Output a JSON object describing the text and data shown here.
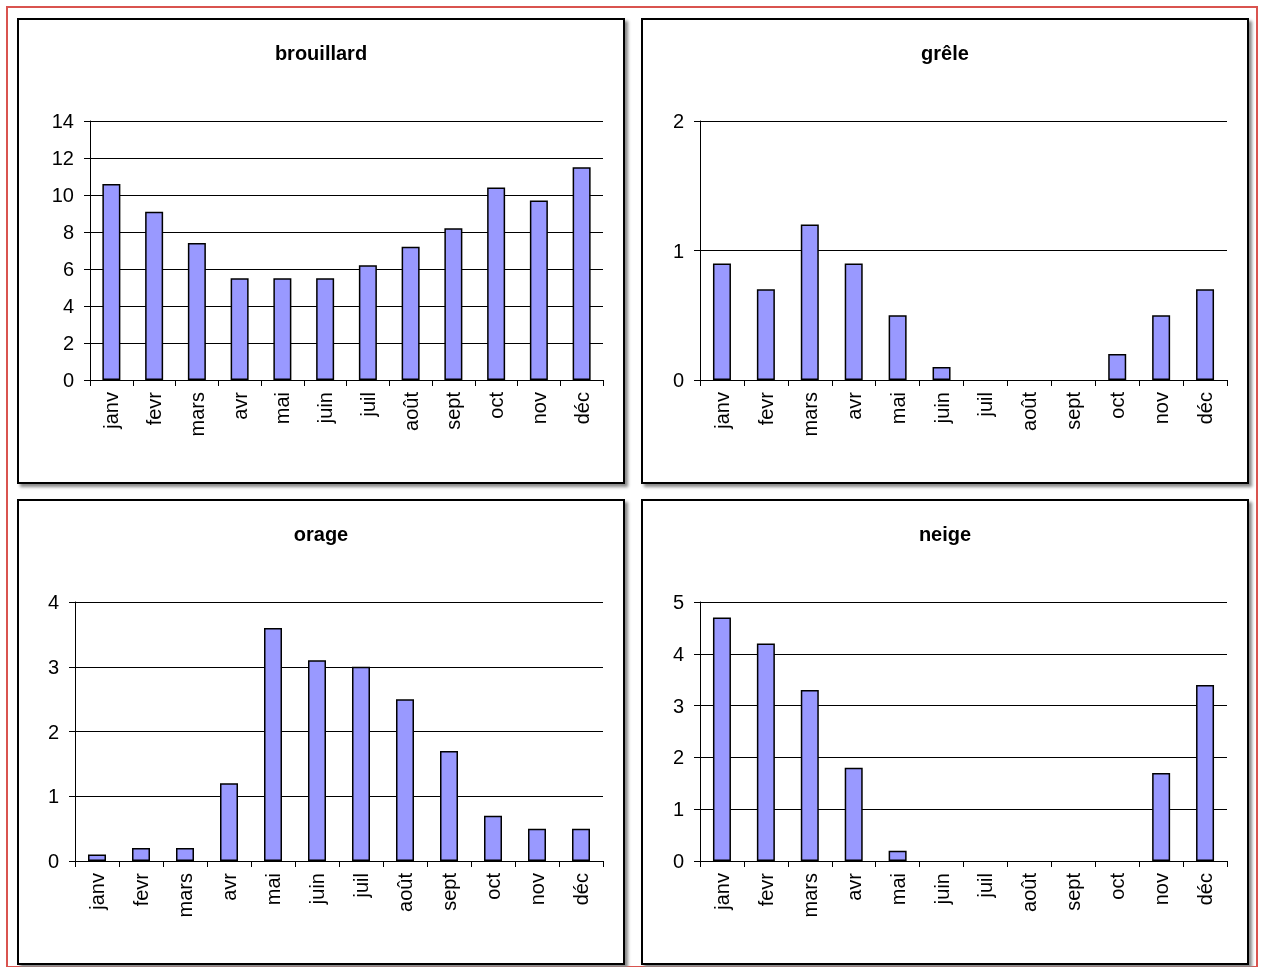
{
  "chart_data": [
    {
      "type": "bar",
      "title": "brouillard",
      "categories": [
        "janv",
        "fevr",
        "mars",
        "avr",
        "mai",
        "juin",
        "juil",
        "août",
        "sept",
        "oct",
        "nov",
        "déc"
      ],
      "values": [
        10.6,
        9.1,
        7.4,
        5.5,
        5.5,
        5.5,
        6.2,
        7.2,
        8.2,
        10.4,
        9.7,
        11.5
      ],
      "color": "#9999ff",
      "ylim": [
        0,
        14
      ],
      "yticks": [
        0,
        2,
        4,
        6,
        8,
        10,
        12,
        14
      ],
      "grid": "y"
    },
    {
      "type": "bar",
      "title": "grêle",
      "categories": [
        "janv",
        "fevr",
        "mars",
        "avr",
        "mai",
        "juin",
        "juil",
        "août",
        "sept",
        "oct",
        "nov",
        "déc"
      ],
      "values": [
        0.9,
        0.7,
        1.2,
        0.9,
        0.5,
        0.1,
        0,
        0,
        0,
        0.2,
        0.5,
        0.7
      ],
      "color": "#9999ff",
      "ylim": [
        0,
        2
      ],
      "yticks": [
        0,
        1,
        2
      ],
      "grid": "y"
    },
    {
      "type": "bar",
      "title": "orage",
      "categories": [
        "janv",
        "fevr",
        "mars",
        "avr",
        "mai",
        "juin",
        "juil",
        "août",
        "sept",
        "oct",
        "nov",
        "déc"
      ],
      "values": [
        0.1,
        0.2,
        0.2,
        1.2,
        3.6,
        3.1,
        3.0,
        2.5,
        1.7,
        0.7,
        0.5,
        0.5
      ],
      "color": "#9999ff",
      "ylim": [
        0,
        4
      ],
      "yticks": [
        0,
        1,
        2,
        3,
        4
      ],
      "grid": "y"
    },
    {
      "type": "bar",
      "title": "neige",
      "categories": [
        "janv",
        "fevr",
        "mars",
        "avr",
        "mai",
        "juin",
        "juil",
        "août",
        "sept",
        "oct",
        "nov",
        "déc"
      ],
      "values": [
        4.7,
        4.2,
        3.3,
        1.8,
        0.2,
        0,
        0,
        0,
        0,
        0,
        1.7,
        3.4
      ],
      "color": "#9999ff",
      "ylim": [
        0,
        5
      ],
      "yticks": [
        0,
        1,
        2,
        3,
        4,
        5
      ],
      "grid": "y"
    }
  ]
}
